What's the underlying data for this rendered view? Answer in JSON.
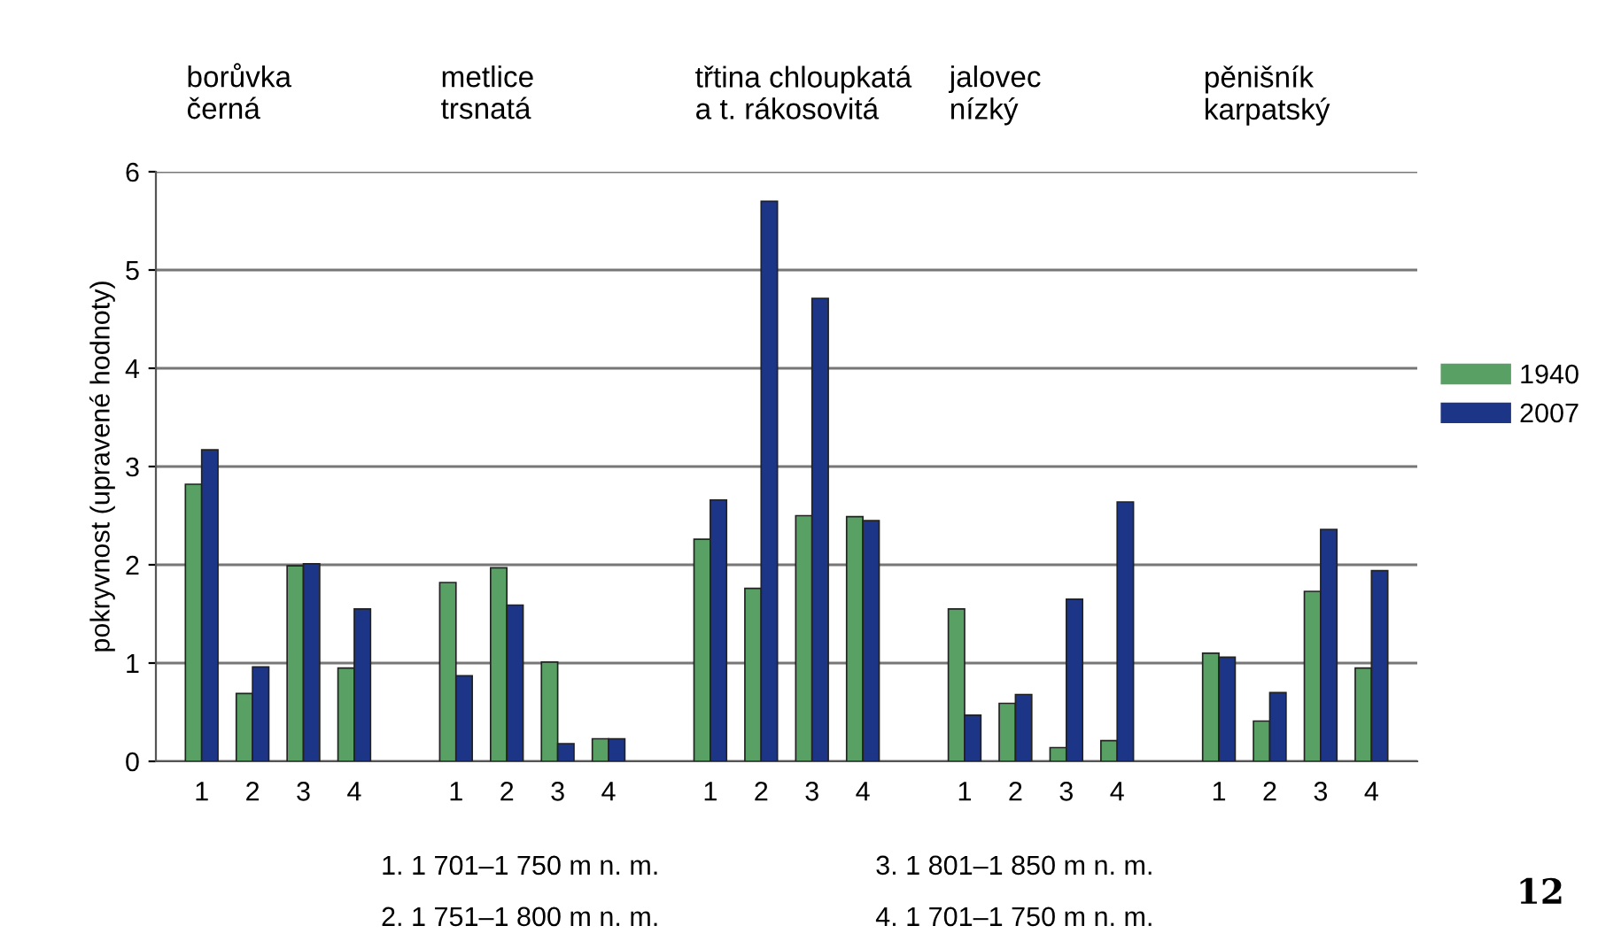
{
  "chart_data": {
    "type": "bar",
    "ylabel": "pokryvnost (upravené hodnoty)",
    "categories": [
      "1",
      "2",
      "3",
      "4",
      null,
      "1",
      "2",
      "3",
      "4",
      null,
      "1",
      "2",
      "3",
      "4",
      null,
      "1",
      "2",
      "3",
      "4",
      null,
      "1",
      "2",
      "3",
      "4"
    ],
    "series": [
      {
        "name": "1940",
        "color": "#58a064",
        "values": [
          2.82,
          0.69,
          1.99,
          0.95,
          null,
          1.82,
          1.97,
          1.01,
          0.23,
          null,
          2.26,
          1.76,
          2.5,
          2.49,
          null,
          1.55,
          0.59,
          0.14,
          0.21,
          null,
          1.1,
          0.41,
          1.73,
          0.95
        ]
      },
      {
        "name": "2007",
        "color": "#1c3586",
        "values": [
          3.17,
          0.96,
          2.01,
          1.55,
          null,
          0.87,
          1.59,
          0.18,
          0.23,
          null,
          2.66,
          5.7,
          4.71,
          2.45,
          null,
          0.47,
          0.68,
          1.65,
          2.64,
          null,
          1.06,
          0.7,
          2.36,
          1.94
        ]
      }
    ],
    "ylim": [
      0,
      6
    ],
    "yticks": [
      0,
      1,
      2,
      3,
      4,
      5,
      6
    ],
    "grid": "y",
    "legend": "right",
    "annotations": [
      "borůvka\nčerná",
      "metlice\ntrsnatá",
      "třtina chloupkatá\na t. rákosovitá",
      "jalovec\nnízký",
      "pěnišník\nkarpatský",
      "1. 1 701–1 750 m n. m.",
      "2. 1 751–1 800 m n. m.",
      "3. 1 801–1 850 m n. m.",
      "4. 1 701–1 750 m n. m.",
      "12"
    ]
  }
}
